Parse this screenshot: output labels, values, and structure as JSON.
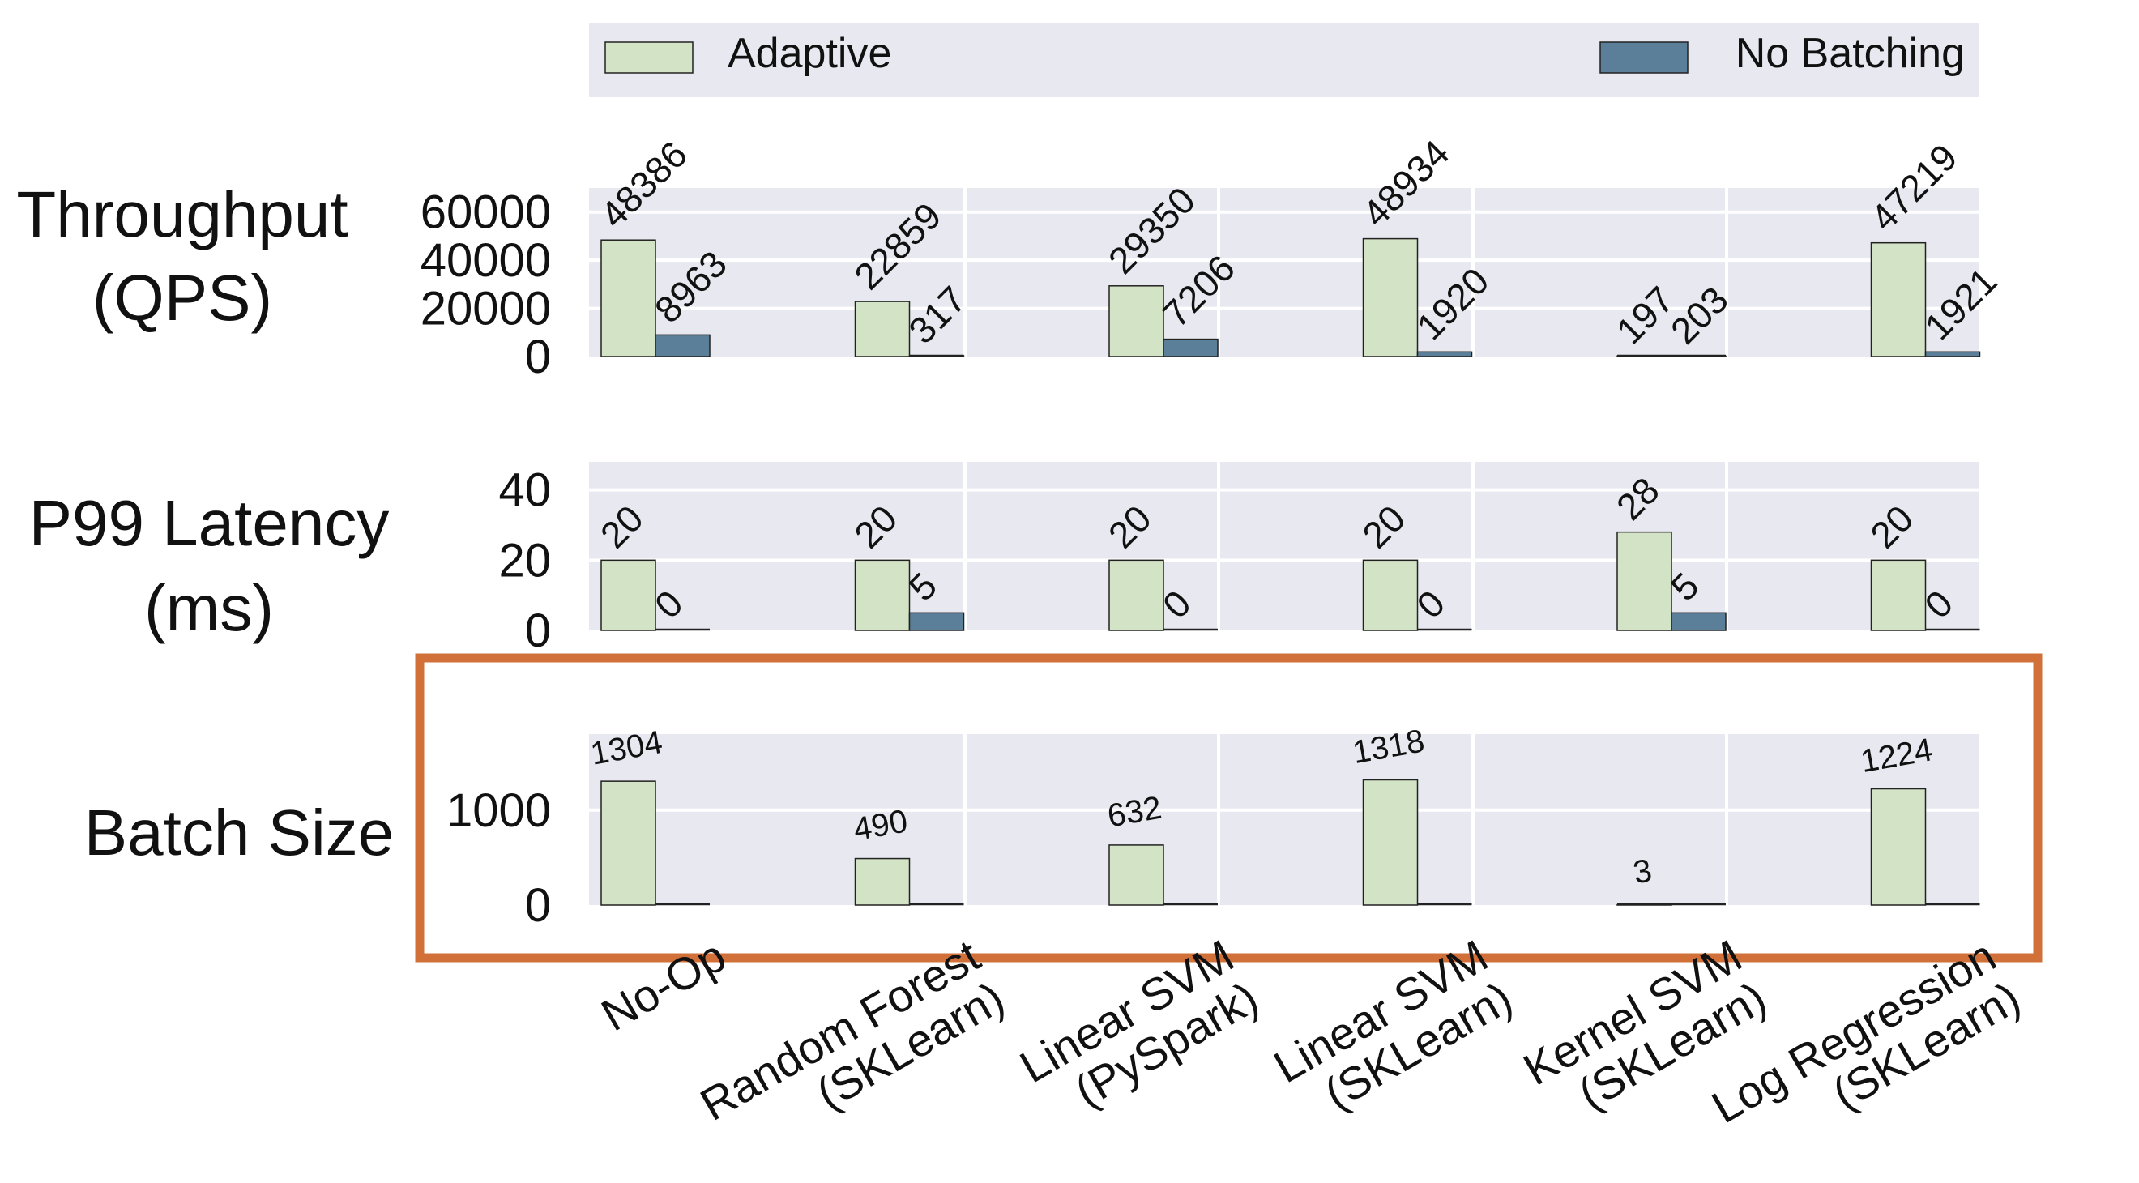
{
  "legend": {
    "placement": "top",
    "items": [
      "Adaptive",
      "No Batching"
    ]
  },
  "colors": {
    "adaptive": "#d3e3c5",
    "no_batching": "#5b7f98",
    "panel_bg": "#e8e8f1",
    "highlight_box": "#d2703a",
    "grid": "#ffffff"
  },
  "chart_data": [
    {
      "type": "bar",
      "row_label": [
        "Throughput",
        "(QPS)"
      ],
      "categories": [
        "No-Op",
        "Random Forest (SKLearn)",
        "Linear SVM (PySpark)",
        "Linear SVM (SKLearn)",
        "Kernel SVM (SKLearn)",
        "Log Regression (SKLearn)"
      ],
      "series": [
        {
          "name": "Adaptive",
          "values": [
            48386,
            22859,
            29350,
            48934,
            197,
            47219
          ]
        },
        {
          "name": "No Batching",
          "values": [
            8963,
            317,
            7206,
            1920,
            203,
            1921
          ]
        }
      ],
      "yticks": [
        0,
        20000,
        40000,
        60000
      ],
      "ylim": [
        0,
        70000
      ],
      "grid": true
    },
    {
      "type": "bar",
      "row_label": [
        "P99 Latency",
        "(ms)"
      ],
      "categories": [
        "No-Op",
        "Random Forest (SKLearn)",
        "Linear SVM (PySpark)",
        "Linear SVM (SKLearn)",
        "Kernel SVM (SKLearn)",
        "Log Regression (SKLearn)"
      ],
      "series": [
        {
          "name": "Adaptive",
          "values": [
            20,
            20,
            20,
            20,
            28,
            20
          ]
        },
        {
          "name": "No Batching",
          "values": [
            0,
            5,
            0,
            0,
            5,
            0
          ]
        }
      ],
      "yticks": [
        0,
        20,
        40
      ],
      "ylim": [
        0,
        48
      ],
      "grid": true
    },
    {
      "type": "bar",
      "row_label": [
        "Batch Size"
      ],
      "highlighted": true,
      "categories": [
        "No-Op",
        "Random Forest (SKLearn)",
        "Linear SVM (PySpark)",
        "Linear SVM (SKLearn)",
        "Kernel SVM (SKLearn)",
        "Log Regression (SKLearn)"
      ],
      "series": [
        {
          "name": "Adaptive",
          "values": [
            1304,
            490,
            632,
            1318,
            3,
            1224
          ],
          "show_labels": true
        },
        {
          "name": "No Batching",
          "values": [
            0,
            0,
            0,
            0,
            0,
            0
          ],
          "show_labels": false
        }
      ],
      "yticks": [
        0,
        1000
      ],
      "ylim": [
        0,
        1800
      ],
      "grid": true
    }
  ],
  "x_tick_labels": [
    [
      "No-Op"
    ],
    [
      "Random Forest",
      "(SKLearn)"
    ],
    [
      "Linear SVM",
      "(PySpark)"
    ],
    [
      "Linear SVM",
      "(SKLearn)"
    ],
    [
      "Kernel SVM",
      "(SKLearn)"
    ],
    [
      "Log Regression",
      "(SKLearn)"
    ]
  ]
}
